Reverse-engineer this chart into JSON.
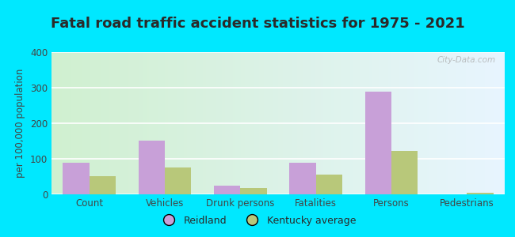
{
  "title": "Fatal road traffic accident statistics for 1975 - 2021",
  "ylabel": "per 100,000 population",
  "categories": [
    "Count",
    "Vehicles",
    "Drunk persons",
    "Fatalities",
    "Persons",
    "Pedestrians"
  ],
  "reidland": [
    90,
    152,
    25,
    90,
    290,
    0
  ],
  "kentucky_avg": [
    52,
    75,
    17,
    55,
    122,
    5
  ],
  "reidland_color": "#c8a0d8",
  "kentucky_color": "#b8c87a",
  "bar_width": 0.35,
  "ylim": [
    0,
    400
  ],
  "yticks": [
    0,
    100,
    200,
    300,
    400
  ],
  "outer_background": "#00e8ff",
  "title_fontsize": 13,
  "axis_fontsize": 8.5,
  "legend_labels": [
    "Reidland",
    "Kentucky average"
  ],
  "watermark": "City-Data.com",
  "gradient_top": "#e8f5ff",
  "gradient_bottom": "#d0f0d0"
}
